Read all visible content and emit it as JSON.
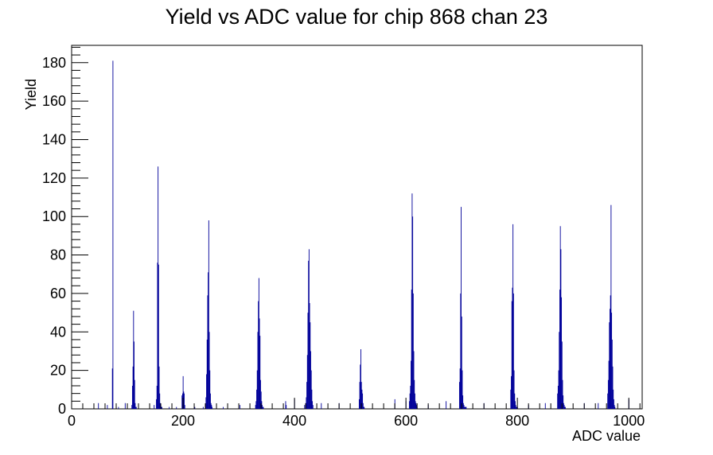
{
  "chart_data": {
    "type": "bar",
    "title": "Yield vs ADC value for chip 868 chan 23",
    "xlabel": "ADC value",
    "ylabel": "Yield",
    "xlim": [
      0,
      1024
    ],
    "ylim": [
      0,
      189
    ],
    "x_ticks": [
      0,
      200,
      400,
      600,
      800,
      1000
    ],
    "y_ticks": [
      0,
      20,
      40,
      60,
      80,
      100,
      120,
      140,
      160,
      180
    ],
    "series": [
      {
        "x": [
          48,
          64,
          73,
          74,
          80,
          84,
          96,
          108,
          109,
          110,
          111,
          112,
          113,
          114,
          115,
          116,
          148,
          152,
          153,
          154,
          155,
          156,
          157,
          158,
          159,
          160,
          161,
          162,
          175,
          188,
          198,
          199,
          200,
          201,
          202,
          203,
          221,
          236,
          240,
          241,
          242,
          243,
          244,
          245,
          246,
          247,
          248,
          249,
          250,
          251,
          252,
          272,
          302,
          330,
          331,
          332,
          333,
          334,
          335,
          336,
          337,
          338,
          339,
          340,
          341,
          342,
          343,
          344,
          384,
          385,
          400,
          418,
          420,
          421,
          422,
          423,
          424,
          425,
          426,
          427,
          428,
          429,
          430,
          431,
          432,
          433,
          448,
          480,
          516,
          517,
          518,
          519,
          520,
          521,
          522,
          523,
          524,
          525,
          580,
          600,
          606,
          607,
          608,
          609,
          610,
          611,
          612,
          613,
          614,
          615,
          616,
          617,
          618,
          619,
          620,
          640,
          672,
          696,
          697,
          698,
          699,
          700,
          701,
          702,
          703,
          704,
          705,
          706,
          707,
          708,
          740,
          788,
          789,
          790,
          791,
          792,
          793,
          794,
          795,
          796,
          797,
          798,
          799,
          800,
          820,
          850,
          872,
          873,
          874,
          875,
          876,
          877,
          878,
          879,
          880,
          881,
          882,
          883,
          884,
          885,
          886,
          920,
          945,
          962,
          963,
          964,
          965,
          966,
          967,
          968,
          969,
          970,
          971,
          972,
          973,
          974,
          975,
          1000
        ],
        "values": [
          3,
          2,
          21,
          181,
          1,
          1,
          3,
          2,
          12,
          22,
          51,
          35,
          15,
          3,
          1,
          1,
          2,
          5,
          12,
          76,
          126,
          75,
          22,
          8,
          3,
          2,
          1,
          1,
          1,
          1,
          7,
          8,
          17,
          9,
          8,
          2,
          1,
          1,
          2,
          6,
          18,
          36,
          59,
          71,
          98,
          40,
          20,
          8,
          3,
          2,
          1,
          1,
          2,
          2,
          4,
          10,
          20,
          40,
          56,
          68,
          47,
          38,
          15,
          9,
          4,
          2,
          1,
          1,
          4,
          2,
          5,
          2,
          3,
          6,
          14,
          28,
          50,
          77,
          83,
          55,
          45,
          30,
          20,
          10,
          4,
          2,
          3,
          3,
          5,
          14,
          23,
          31,
          14,
          10,
          8,
          3,
          1,
          1,
          5,
          4,
          4,
          8,
          12,
          25,
          62,
          112,
          100,
          60,
          30,
          15,
          8,
          4,
          3,
          2,
          1,
          2,
          4,
          14,
          21,
          60,
          105,
          48,
          20,
          7,
          3,
          2,
          1,
          1,
          1,
          1,
          3,
          10,
          17,
          56,
          63,
          96,
          60,
          20,
          8,
          4,
          2,
          1,
          1,
          1,
          2,
          3,
          8,
          12,
          20,
          40,
          62,
          95,
          83,
          58,
          35,
          15,
          7,
          3,
          2,
          1,
          1,
          3,
          3,
          8,
          15,
          25,
          45,
          52,
          59,
          106,
          50,
          36,
          22,
          10,
          5,
          2,
          1,
          5
        ]
      }
    ]
  }
}
